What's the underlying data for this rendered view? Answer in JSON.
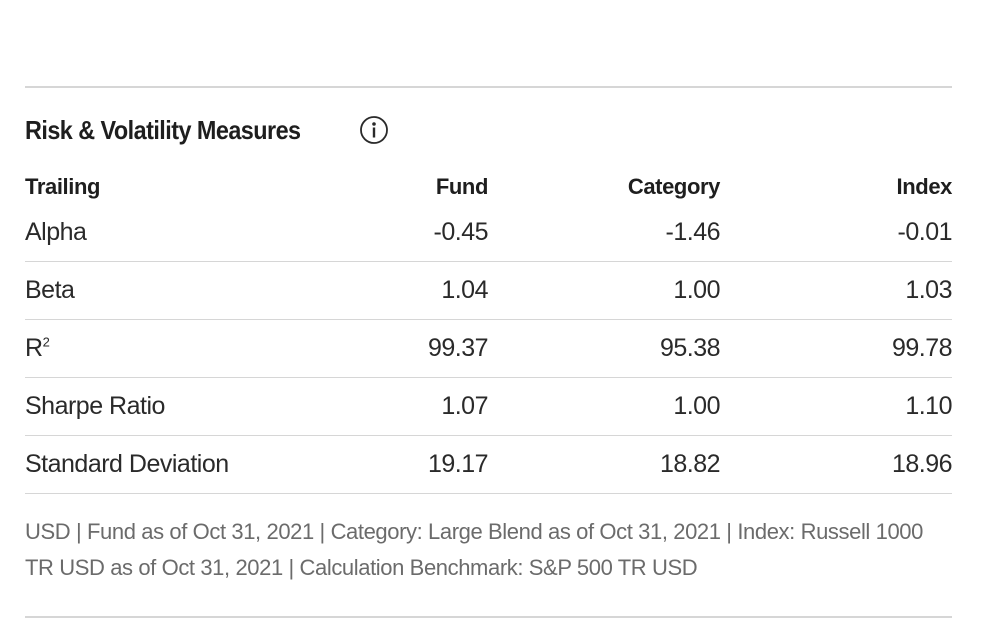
{
  "section": {
    "title": "Risk & Volatility Measures",
    "info_icon": "info-icon"
  },
  "table": {
    "headers": [
      "Trailing",
      "Fund",
      "Category",
      "Index"
    ],
    "rows": [
      {
        "label": "Alpha",
        "sup": "",
        "fund": "-0.45",
        "category": "-1.46",
        "index": "-0.01"
      },
      {
        "label": "Beta",
        "sup": "",
        "fund": "1.04",
        "category": "1.00",
        "index": "1.03"
      },
      {
        "label": "R",
        "sup": "2",
        "fund": "99.37",
        "category": "95.38",
        "index": "99.78"
      },
      {
        "label": "Sharpe Ratio",
        "sup": "",
        "fund": "1.07",
        "category": "1.00",
        "index": "1.10"
      },
      {
        "label": "Standard Deviation",
        "sup": "",
        "fund": "19.17",
        "category": "18.82",
        "index": "18.96"
      }
    ]
  },
  "footnote": "USD | Fund as of Oct 31, 2021 | Category: Large Blend as of Oct 31, 2021 | Index: Russell 1000 TR USD as of Oct 31, 2021 | Calculation Benchmark: S&P 500 TR USD",
  "colors": {
    "text": "#1e1e1e",
    "muted": "#6b6b6b",
    "rule": "#d6d6d6"
  }
}
